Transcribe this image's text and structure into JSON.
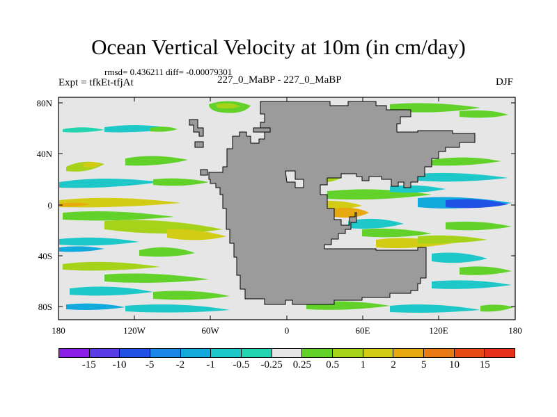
{
  "title": "Ocean Vertical Velocity at 10m (in cm/day)",
  "stats_line": "rmsd= 0.436211 diff= -0.00079301",
  "experiment": "Expt = tfkEt-tfjAt",
  "case_label": "227_0_MaBP - 227_0_MaBP",
  "season": "DJF",
  "lat_ticks": [
    "80N",
    "40N",
    "0",
    "40S",
    "80S"
  ],
  "lon_ticks": [
    "180",
    "120W",
    "60W",
    "0",
    "60E",
    "120E",
    "180"
  ],
  "colorbar": {
    "levels": [
      "-15",
      "-10",
      "-5",
      "-2",
      "-1",
      "-0.5",
      "-0.25",
      "0.25",
      "0.5",
      "1",
      "2",
      "5",
      "10",
      "15"
    ],
    "colors": [
      "#8a1ee6",
      "#5a3ce6",
      "#2050e6",
      "#1a86e6",
      "#12aadc",
      "#1ec8c8",
      "#22d4b0",
      "#e6e6e6",
      "#62d22a",
      "#a6d21a",
      "#d2cc14",
      "#e6aa10",
      "#ea7a14",
      "#e84a14",
      "#e6321a"
    ]
  },
  "map_colors": {
    "land": "#9b9b9b",
    "background": "#e6e6e6"
  },
  "chart_data": {
    "type": "heatmap",
    "title": "Ocean Vertical Velocity at 10m (in cm/day)",
    "x_range": [
      -180,
      180
    ],
    "y_range": [
      -90,
      90
    ],
    "x_ticks": [
      "180",
      "120W",
      "60W",
      "0",
      "60E",
      "120E",
      "180"
    ],
    "y_ticks": [
      "80N",
      "40N",
      "0",
      "40S",
      "80S"
    ],
    "statistics": {
      "rmsd": 0.436211,
      "diff": -0.00079301
    },
    "experiment": "tfkEt-tfjAt",
    "season": "DJF",
    "contour_levels": [
      -15,
      -10,
      -5,
      -2,
      -1,
      -0.5,
      -0.25,
      0.25,
      0.5,
      1,
      2,
      5,
      10,
      15
    ]
  }
}
